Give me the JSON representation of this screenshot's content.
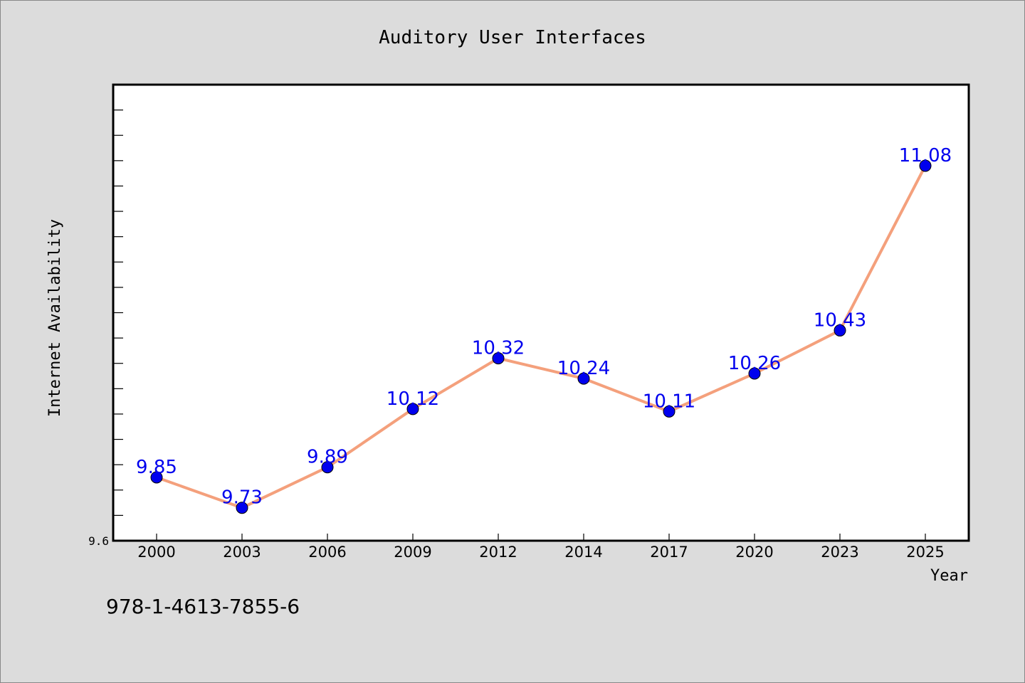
{
  "chart_data": {
    "type": "line",
    "title": "Auditory User Interfaces",
    "xlabel": "Year",
    "ylabel": "Internet Availability",
    "categories": [
      "2000",
      "2003",
      "2006",
      "2009",
      "2012",
      "2014",
      "2017",
      "2020",
      "2023",
      "2025"
    ],
    "series": [
      {
        "values": [
          9.85,
          9.73,
          9.89,
          10.12,
          10.32,
          10.24,
          10.11,
          10.26,
          10.43,
          11.08
        ],
        "labels": [
          "9.85",
          "9.73",
          "9.89",
          "10.12",
          "10.32",
          "10.24",
          "10.11",
          "10.26",
          "10.43",
          "11.08"
        ],
        "line_color": "#f4a07c",
        "marker_color": "#0000ee",
        "label_color": "#0000ee"
      }
    ],
    "ylim": [
      9.6,
      11.4
    ],
    "ytick_labels": [
      "9.6"
    ],
    "minor_ytick_step": 0.1,
    "grid": false,
    "legend": "none"
  },
  "footer": {
    "isbn": "978-1-4613-7855-6"
  }
}
